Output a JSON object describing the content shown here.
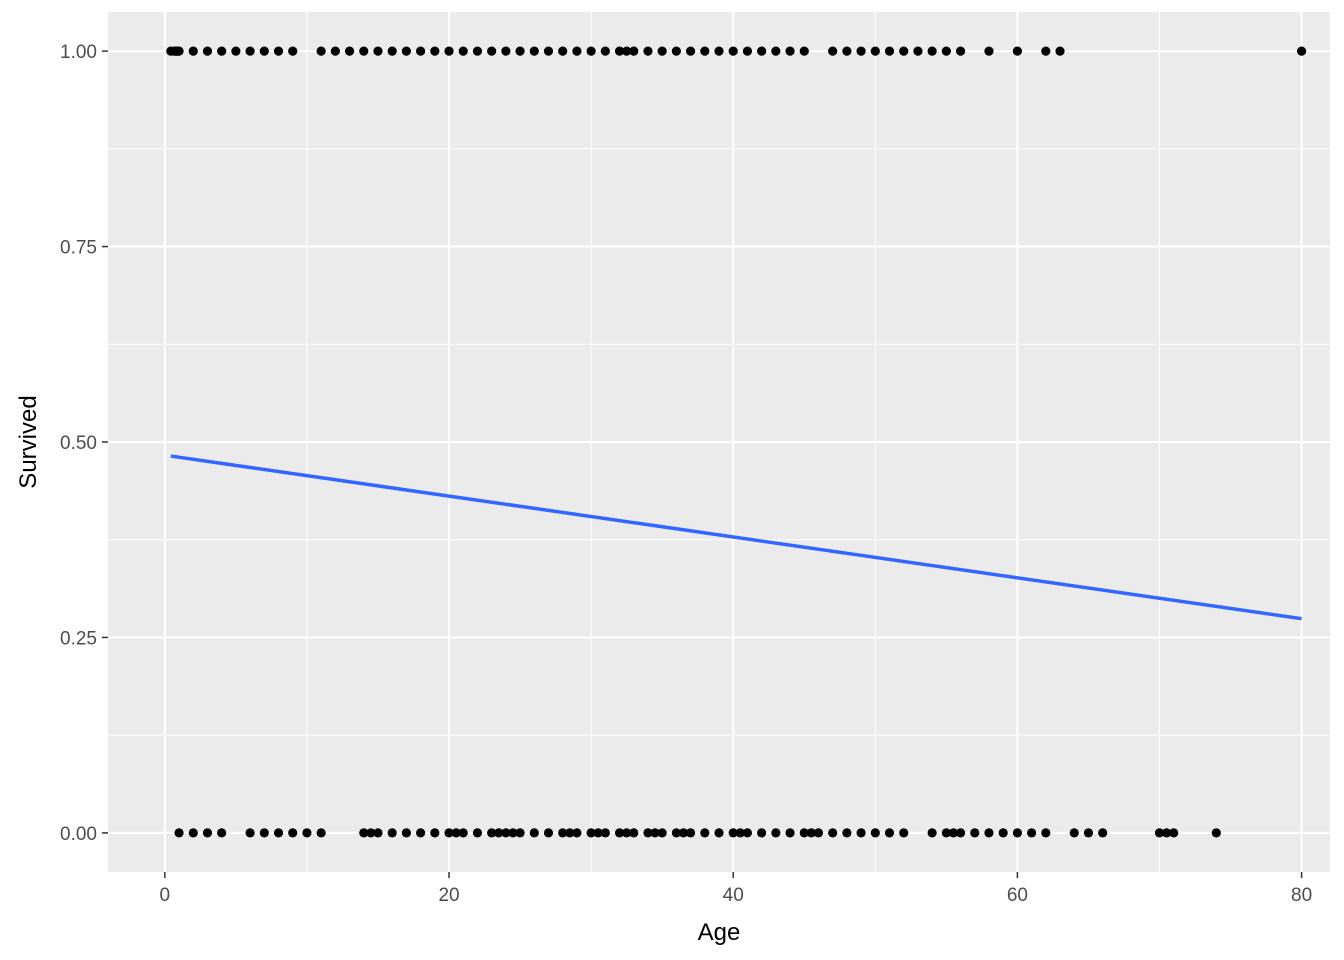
{
  "chart_data": {
    "type": "scatter",
    "title": "",
    "xlabel": "Age",
    "ylabel": "Survived",
    "xlim": [
      -4,
      82
    ],
    "ylim": [
      -0.05,
      1.05
    ],
    "x_ticks": [
      0,
      20,
      40,
      60,
      80
    ],
    "x_tick_labels": [
      "0",
      "20",
      "40",
      "60",
      "80"
    ],
    "y_ticks": [
      0,
      0.25,
      0.5,
      0.75,
      1
    ],
    "y_tick_labels": [
      "0.00",
      "0.25",
      "0.50",
      "0.75",
      "1.00"
    ],
    "grid": true,
    "legend": "none",
    "colors": {
      "panel": "#ebebeb",
      "grid": "#ffffff",
      "points": "#000000",
      "fit_line": "#3366ff",
      "tick_text": "#4d4d4d",
      "axis_title": "#000000"
    },
    "series": [
      {
        "type": "scatter",
        "survived_1_ages": [
          0.42,
          0.67,
          0.75,
          0.83,
          0.92,
          1,
          2,
          3,
          4,
          5,
          6,
          7,
          8,
          9,
          11,
          12,
          13,
          14,
          15,
          16,
          17,
          18,
          19,
          20,
          21,
          22,
          23,
          24,
          25,
          26,
          27,
          28,
          29,
          30,
          31,
          32,
          32.5,
          33,
          34,
          35,
          36,
          37,
          38,
          39,
          40,
          41,
          42,
          43,
          44,
          45,
          47,
          48,
          49,
          50,
          51,
          52,
          53,
          54,
          55,
          56,
          58,
          60,
          62,
          63,
          80
        ],
        "survived_0_ages": [
          1,
          2,
          3,
          4,
          6,
          7,
          8,
          9,
          10,
          11,
          14,
          14.5,
          15,
          16,
          17,
          18,
          19,
          20,
          20.5,
          21,
          22,
          23,
          23.5,
          24,
          24.5,
          25,
          26,
          27,
          28,
          28.5,
          29,
          30,
          30.5,
          31,
          32,
          32.5,
          33,
          34,
          34.5,
          35,
          36,
          36.5,
          37,
          38,
          39,
          40,
          40.5,
          41,
          42,
          43,
          44,
          45,
          45.5,
          46,
          47,
          48,
          49,
          50,
          51,
          52,
          54,
          55,
          55.5,
          56,
          57,
          58,
          59,
          60,
          61,
          62,
          64,
          65,
          66,
          70,
          70.5,
          71,
          74
        ]
      },
      {
        "type": "line",
        "x": [
          0.42,
          80
        ],
        "y": [
          0.482,
          0.274
        ]
      }
    ]
  }
}
